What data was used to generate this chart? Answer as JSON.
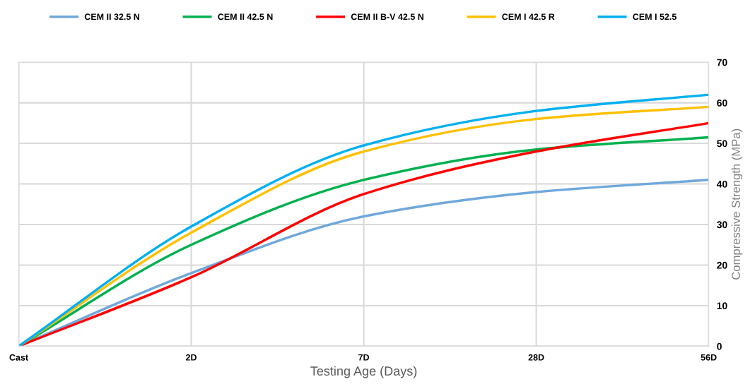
{
  "chart_data": {
    "type": "line",
    "xlabel": "Testing Age (Days)",
    "ylabel": "Compressive Strength (MPa)",
    "categories": [
      "Cast",
      "2D",
      "7D",
      "28D",
      "56D"
    ],
    "series": [
      {
        "name": "CEM II 32.5 N",
        "color": "#6fa8dc",
        "values": [
          0,
          18,
          32,
          38,
          41
        ]
      },
      {
        "name": "CEM II 42.5 N",
        "color": "#00b050",
        "values": [
          0,
          25,
          41,
          48.5,
          51.5
        ]
      },
      {
        "name": "CEM II B-V 42.5 N",
        "color": "#ff0000",
        "values": [
          0,
          17,
          37.5,
          48,
          55
        ]
      },
      {
        "name": "CEM I 42.5 R",
        "color": "#ffc000",
        "values": [
          0,
          28,
          48,
          56,
          59
        ]
      },
      {
        "name": "CEM I 52.5",
        "color": "#00b0f0",
        "values": [
          0,
          29.5,
          49.5,
          58,
          62
        ]
      }
    ],
    "ylim": [
      0,
      70
    ],
    "yticks": [
      0,
      10,
      20,
      30,
      40,
      50,
      60,
      70
    ],
    "grid": true,
    "legend": "top",
    "marker": "none",
    "line_style": "solid"
  }
}
